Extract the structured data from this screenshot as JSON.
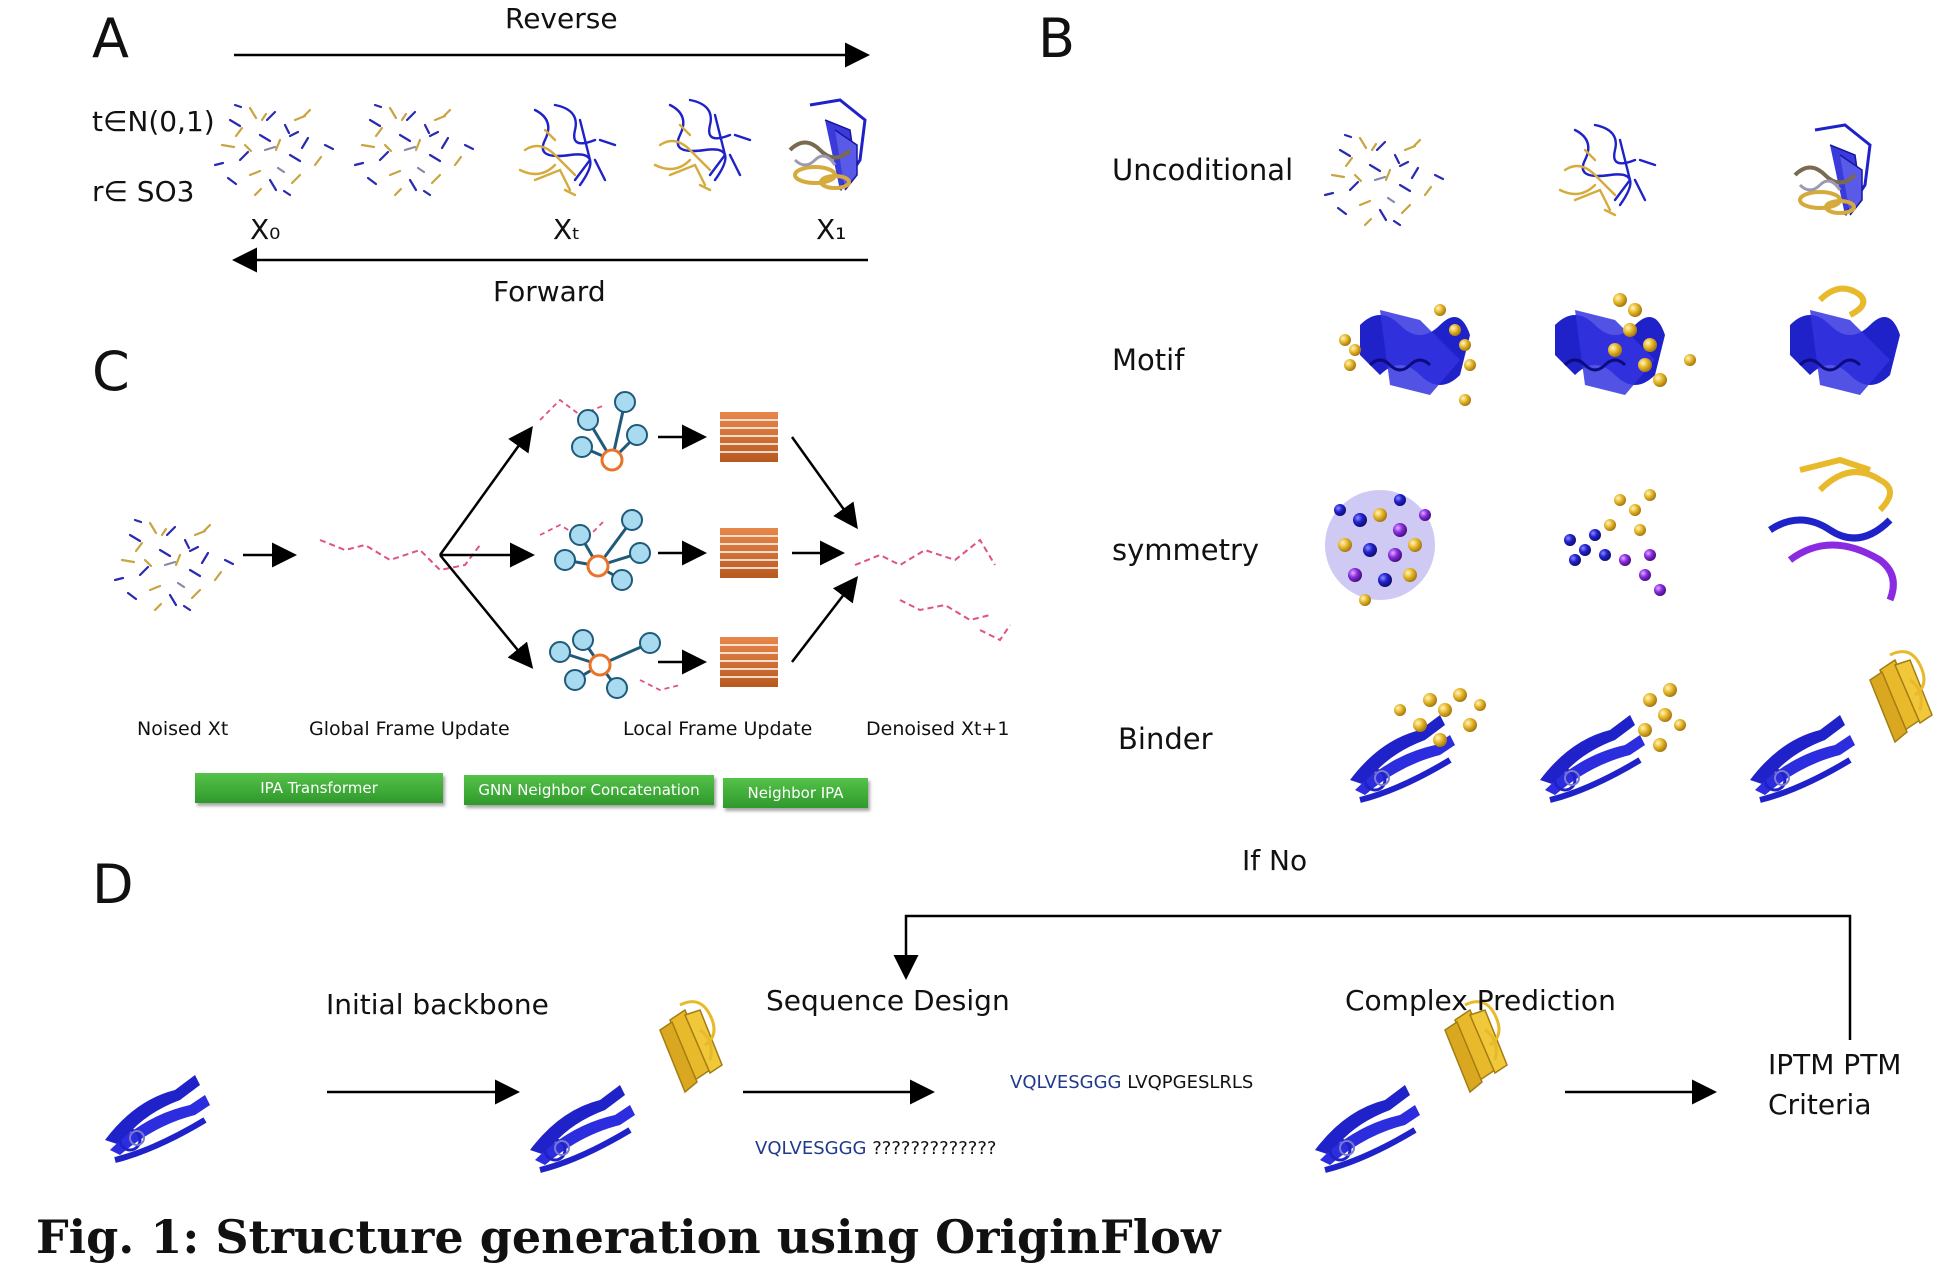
{
  "panels": {
    "a": "A",
    "b": "B",
    "c": "C",
    "d": "D"
  },
  "panel_a": {
    "reverse": "Reverse",
    "forward": "Forward",
    "t_def": "t∈N(0,1)",
    "r_def": "r∈ SO3",
    "x0": "X₀",
    "xt": "Xₜ",
    "x1": "X₁"
  },
  "panel_b": {
    "rows": [
      "Uncoditional",
      "Motif",
      "symmetry",
      "Binder"
    ]
  },
  "panel_c": {
    "noised": "Noised Xt",
    "global": "Global Frame Update",
    "local": "Local Frame Update",
    "denoised": "Denoised Xt+1",
    "buttons": [
      "IPA Transformer",
      "GNN Neighbor Concatenation",
      "Neighbor IPA"
    ]
  },
  "panel_d": {
    "if_no": "If  No",
    "initial": "Initial backbone",
    "sequence": "Sequence Design",
    "complex": "Complex  Prediction",
    "criteria_line1": "IPTM  PTM",
    "criteria_line2": "Criteria",
    "seq1_blue": "VQLVESGGG",
    "seq1_black": "LVQPGESLRLS",
    "seq2_blue": "VQLVESGGG",
    "seq2_black": "?????????????"
  },
  "caption": "Fig. 1: Structure generation using OriginFlow",
  "colors": {
    "blue": "#1f22c8",
    "gold": "#e8b92a",
    "purple": "#8a2be2",
    "pink": "#e0508a",
    "green": "#3fae38"
  }
}
